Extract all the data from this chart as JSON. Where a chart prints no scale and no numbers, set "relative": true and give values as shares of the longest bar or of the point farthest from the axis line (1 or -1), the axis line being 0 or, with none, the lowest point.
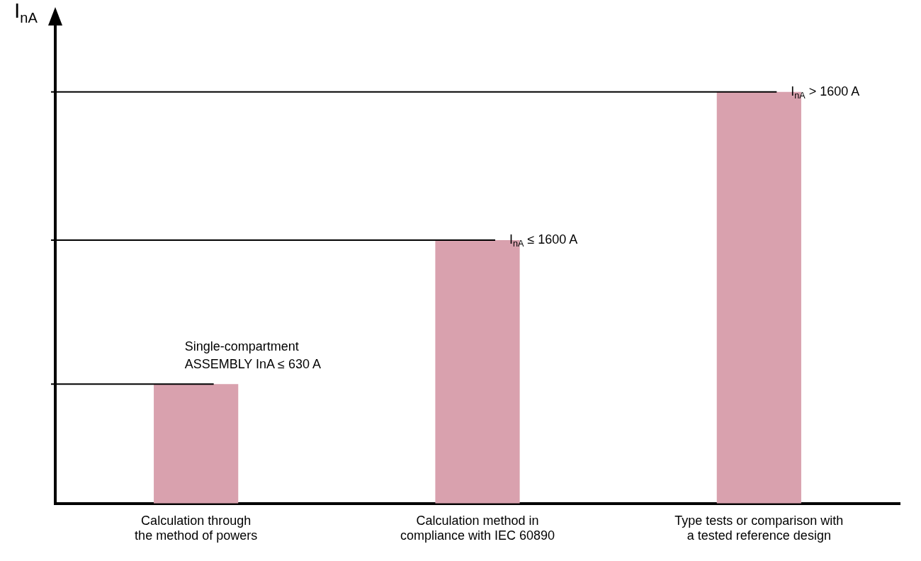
{
  "chart_data": {
    "type": "bar",
    "relative": true,
    "ylabel": "I$_{nA}$",
    "categories": [
      "Calculation through the method of powers",
      "Calculation method in compliance with IEC 60890",
      "Type tests or comparison with a tested reference design"
    ],
    "values": [
      0.29,
      0.64,
      1
    ],
    "color": "#d9a1ae",
    "ref_lines": [
      {
        "axis": "y",
        "value": 0.29,
        "label": "Single-compartment ASSEMBLY InA ≤ 630 A"
      },
      {
        "axis": "y",
        "value": 0.64,
        "label": "I$_{nA}$ ≤ 1600 A"
      },
      {
        "axis": "y",
        "value": 1,
        "label": "I$_{nA}$ > 1600 A"
      }
    ],
    "grid": false,
    "legend": false
  }
}
